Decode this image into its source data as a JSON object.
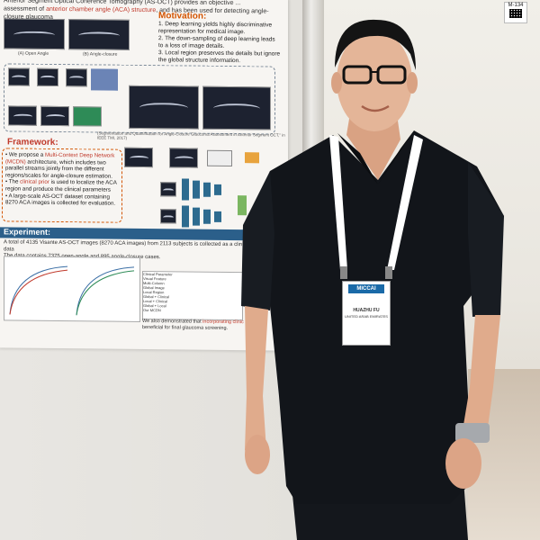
{
  "scene": {
    "description_colors": {
      "wall": "#e6e4df",
      "shirt": "#111418",
      "lanyard": "#ffffff",
      "skin": "#e3b496"
    }
  },
  "sign": {
    "code": "M-134"
  },
  "poster": {
    "top_text_1": "Anterior Segment Optical Coherence Tomography (AS-OCT) provides an objective ...",
    "top_text_2_plain": "assessment of ",
    "top_text_2_hl": "anterior chamber angle (ACA) structure",
    "top_text_2_rest": ", and has been used for detecting angle-closure glaucoma",
    "img_a_label": "(A) Open Angle",
    "img_b_label": "(B) Angle-closure",
    "motivation_title": "Motivation:",
    "motivation_items": [
      "1. Deep learning yields highly discriminative representation for medical image.",
      "2. The down-sampling of deep learning leads to a loss of image details.",
      "3. Local region preserves the details but ignore the global structure information."
    ],
    "flow_caption": "(Segmentation and Quantification for Angle-Closure Glaucoma Assessment in Anterior Segment OCT,\" in IEEE TMI, 2017)",
    "framework_title": "Framework:",
    "framework_1_a": "We propose a ",
    "framework_1_hl": "Multi-Context Deep Network (MCDN)",
    "framework_1_b": " architecture, which includes two parallel streams jointly from the different regions/scales for angle-closure estimation.",
    "framework_2_a": "The ",
    "framework_2_hl": "clinical prior",
    "framework_2_b": " is used to localize the ACA region and produce the clinical parameters",
    "framework_3": "A large-scale AS-OCT dataset containing 8270 ACA images is collected for evaluation.",
    "experiment_title": "Experiment:",
    "experiment_text_1": "A total of 4135 Visante AS-OCT images (8270 ACA images) from 2113 subjects is collected as a clinical AS-OCT data",
    "experiment_text_2": "The data contains 7375 open-angle and 895 angle-closure cases.",
    "table_rows": [
      "Clinical Parameter",
      "Visual Feature",
      "Multi-Column",
      "Global Image",
      "Local Region",
      "Global + Clinical",
      "Local + Clinical",
      "Global + Local",
      "Our MCDN"
    ],
    "bottom_a": "We also demonstrated that ",
    "bottom_hl": "incorporating clinic",
    "bottom_b": "can be beneficial for final glaucoma screening."
  },
  "badge": {
    "logo": "MICCAI",
    "name": "HUAZHU FU",
    "org": "UNITED ARAB EMIRATES"
  }
}
